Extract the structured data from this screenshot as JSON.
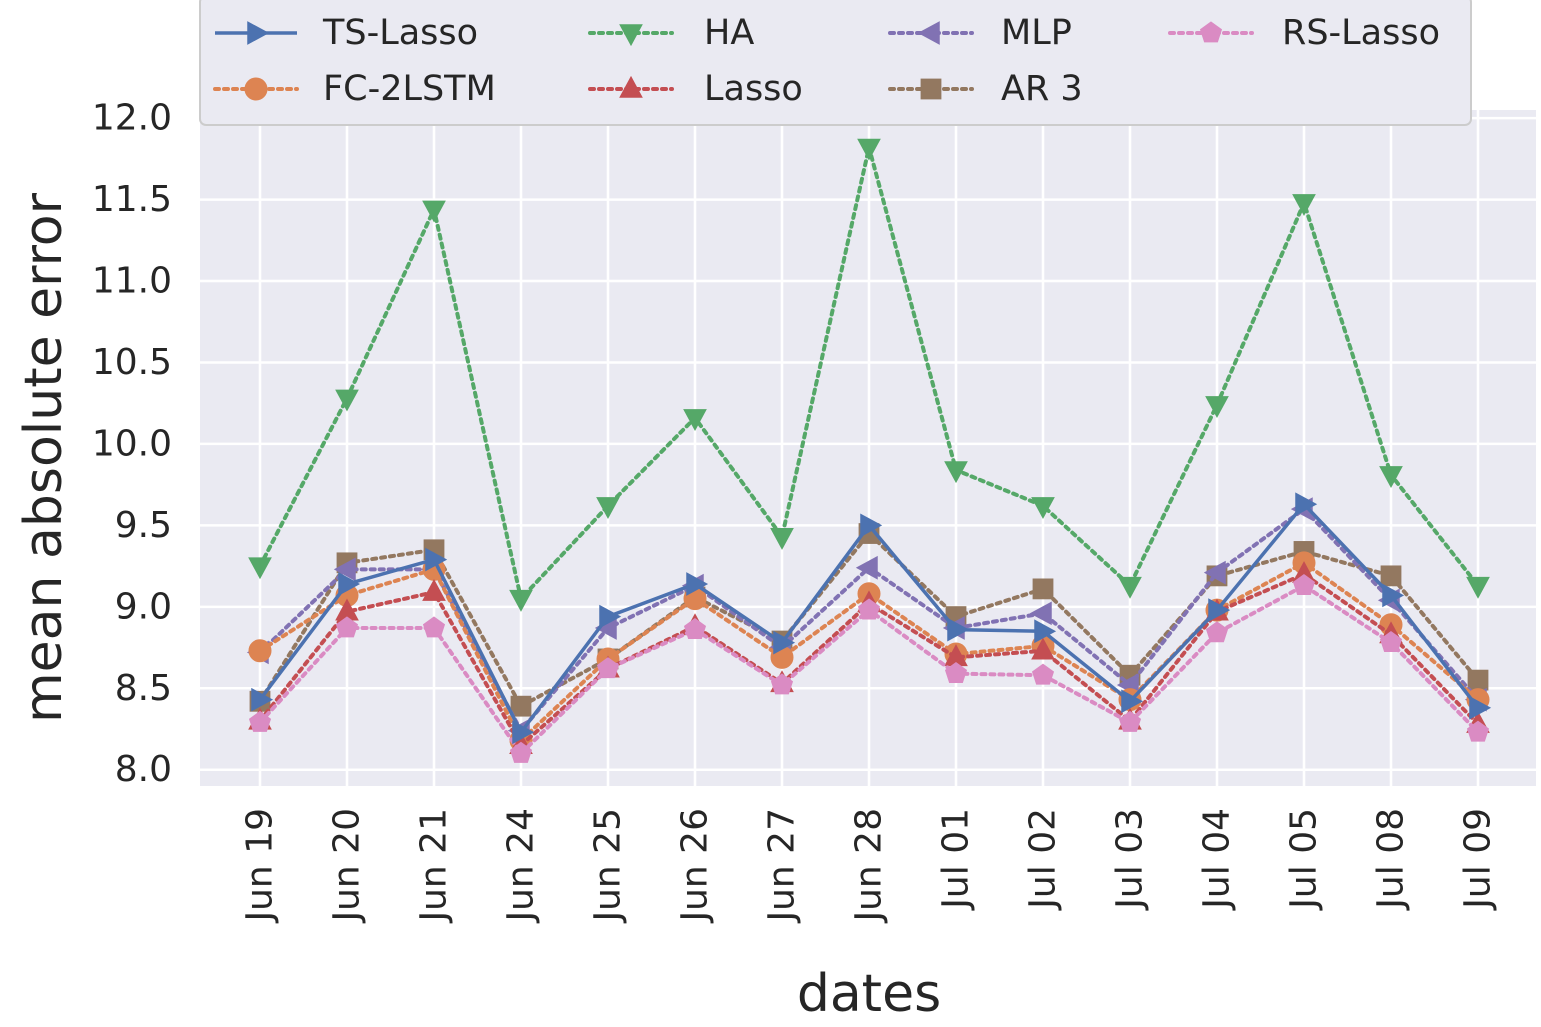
{
  "chart_data": {
    "type": "line",
    "xlabel": "dates",
    "ylabel": "mean absolute error",
    "ylim": [
      7.9,
      12.05
    ],
    "yticks": [
      "8.0",
      "8.5",
      "9.0",
      "9.5",
      "10.0",
      "10.5",
      "11.0",
      "11.5",
      "12.0"
    ],
    "categories": [
      "Jun 19",
      "Jun 20",
      "Jun 21",
      "Jun 24",
      "Jun 25",
      "Jun 26",
      "Jun 27",
      "Jun 28",
      "Jul 01",
      "Jul 02",
      "Jul 03",
      "Jul 04",
      "Jul 05",
      "Jul 08",
      "Jul 09"
    ],
    "legend_position": "top",
    "series": [
      {
        "name": "TS-Lasso",
        "color": "#4c72b0",
        "linestyle": "solid",
        "marker": "triangle-right",
        "values": [
          8.43,
          9.14,
          9.29,
          8.23,
          8.94,
          9.14,
          8.78,
          9.5,
          8.86,
          8.85,
          8.42,
          8.98,
          9.63,
          9.07,
          8.38
        ]
      },
      {
        "name": "FC-2LSTM",
        "color": "#dd8452",
        "linestyle": "dotted",
        "marker": "circle",
        "values": [
          8.73,
          9.07,
          9.23,
          8.18,
          8.68,
          9.05,
          8.69,
          9.08,
          8.71,
          8.76,
          8.43,
          8.98,
          9.27,
          8.89,
          8.43
        ]
      },
      {
        "name": "HA",
        "color": "#55a868",
        "linestyle": "dotted",
        "marker": "triangle-down",
        "values": [
          9.25,
          10.28,
          11.44,
          9.05,
          9.62,
          10.16,
          9.43,
          11.82,
          9.84,
          9.62,
          9.13,
          10.24,
          11.48,
          9.81,
          9.13
        ]
      },
      {
        "name": "Lasso",
        "color": "#c44e52",
        "linestyle": "dotted",
        "marker": "triangle-up",
        "values": [
          8.3,
          8.97,
          9.09,
          8.15,
          8.62,
          8.88,
          8.53,
          9.02,
          8.69,
          8.73,
          8.3,
          8.97,
          9.2,
          8.83,
          8.28
        ]
      },
      {
        "name": "MLP",
        "color": "#8172b3",
        "linestyle": "dotted",
        "marker": "triangle-left",
        "values": [
          8.72,
          9.23,
          9.23,
          8.24,
          8.87,
          9.13,
          8.75,
          9.24,
          8.87,
          8.96,
          8.52,
          9.21,
          9.6,
          9.04,
          8.43
        ]
      },
      {
        "name": "AR 3",
        "color": "#937860",
        "linestyle": "dotted",
        "marker": "square",
        "values": [
          8.42,
          9.27,
          9.35,
          8.39,
          8.68,
          9.06,
          8.79,
          9.45,
          8.94,
          9.11,
          8.58,
          9.19,
          9.34,
          9.19,
          8.55
        ]
      },
      {
        "name": "RS-Lasso",
        "color": "#da8bc3",
        "linestyle": "dotted",
        "marker": "pentagon",
        "values": [
          8.29,
          8.87,
          8.87,
          8.1,
          8.62,
          8.86,
          8.52,
          8.98,
          8.59,
          8.58,
          8.29,
          8.84,
          9.13,
          8.78,
          8.23
        ]
      }
    ]
  }
}
